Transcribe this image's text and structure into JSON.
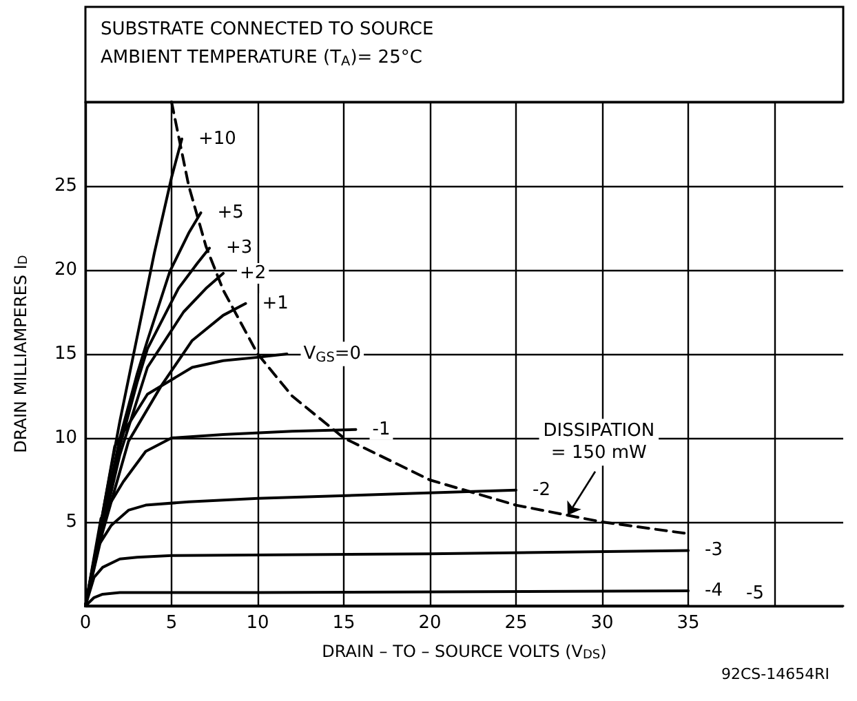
{
  "chart_data": {
    "type": "line",
    "title": "SUBSTRATE CONNECTED TO SOURCE",
    "subtitle": "AMBIENT TEMPERATURE (T$_{A}$)= 25°C",
    "xlabel": "DRAIN – TO – SOURCE VOLTS (V$_{DS}$)",
    "ylabel": "DRAIN MILLIAMPERES I$_{D}$",
    "xlim": [
      0,
      44
    ],
    "xticks": [
      0,
      5,
      10,
      15,
      20,
      25,
      30,
      35,
      {
        "value": 40,
        "label": null
      }
    ],
    "ylim": [
      0,
      30
    ],
    "yticks": [
      {
        "value": 0,
        "label": null
      },
      5,
      10,
      15,
      20,
      25,
      {
        "value": 30,
        "label": null
      }
    ],
    "grid": true,
    "marker": "none",
    "line_style": "solid",
    "series": [
      {
        "name": "+10",
        "color": "#000000",
        "x": [
          0,
          1,
          2,
          3,
          4,
          5,
          5.6
        ],
        "values": [
          0,
          5.5,
          11,
          16,
          21,
          25.5,
          27.8
        ]
      },
      {
        "name": "+5",
        "color": "#000000",
        "x": [
          0,
          1,
          2,
          3,
          3.6,
          4.9,
          6,
          6.7
        ],
        "values": [
          0,
          5,
          10,
          13.8,
          15.8,
          19.9,
          22.2,
          23.4
        ]
      },
      {
        "name": "+3",
        "color": "#000000",
        "x": [
          0,
          1,
          2,
          3,
          3.6,
          5.4,
          6.5,
          7.2
        ],
        "values": [
          0,
          4.8,
          9.5,
          13.3,
          15.3,
          18.9,
          20.4,
          21.3
        ]
      },
      {
        "name": "+2",
        "color": "#000000",
        "x": [
          0,
          1,
          2,
          3.6,
          5.7,
          7,
          8
        ],
        "values": [
          0,
          4.6,
          9,
          14.2,
          17.5,
          18.9,
          19.8
        ]
      },
      {
        "name": "+1",
        "color": "#000000",
        "x": [
          0,
          1,
          2.5,
          4.4,
          6.2,
          8,
          9.3
        ],
        "values": [
          0,
          4.4,
          9.8,
          13.1,
          15.8,
          17.3,
          18
        ]
      },
      {
        "name": "V$_{GS}$=0",
        "color": "#000000",
        "x": [
          0,
          1,
          1.7,
          3.6,
          6.2,
          8,
          10,
          11.7
        ],
        "values": [
          0,
          5.5,
          9.5,
          12.6,
          14.2,
          14.6,
          14.8,
          15
        ]
      },
      {
        "name": "-1",
        "color": "#000000",
        "x": [
          0,
          0.9,
          2.2,
          3.5,
          5,
          8,
          12,
          15.7
        ],
        "values": [
          0,
          5.2,
          7.4,
          9.2,
          10,
          10.2,
          10.4,
          10.5
        ]
      },
      {
        "name": "-2",
        "color": "#000000",
        "x": [
          0,
          0.7,
          1.5,
          2.5,
          3.5,
          6,
          10,
          19,
          25
        ],
        "values": [
          0,
          3.5,
          4.8,
          5.7,
          6,
          6.2,
          6.4,
          6.7,
          6.9
        ]
      },
      {
        "name": "-3",
        "color": "#000000",
        "x": [
          0,
          0.5,
          1,
          2,
          3,
          5,
          20,
          35
        ],
        "values": [
          0,
          1.7,
          2.3,
          2.8,
          2.9,
          3,
          3.1,
          3.3
        ]
      },
      {
        "name": "-4",
        "color": "#000000",
        "x": [
          0,
          0.5,
          1,
          2,
          10,
          35
        ],
        "values": [
          0,
          0.5,
          0.7,
          0.8,
          0.8,
          0.9
        ]
      },
      {
        "name": "-5",
        "color": "#000000",
        "x": [
          0,
          35
        ],
        "values": [
          0,
          0
        ]
      },
      {
        "color": "#000000",
        "line_style": "dashed",
        "x": [
          5,
          6,
          7,
          8,
          10,
          12,
          15,
          20,
          25,
          28,
          30,
          35
        ],
        "values": [
          30,
          25,
          21.4,
          18.8,
          15,
          12.5,
          10,
          7.5,
          6,
          5.4,
          5,
          4.3
        ]
      }
    ],
    "annotations": [
      {
        "text": "DISSIPATION\n= 150 mW",
        "x": 28,
        "y": 5.4
      },
      "92CS-14654RI"
    ]
  }
}
